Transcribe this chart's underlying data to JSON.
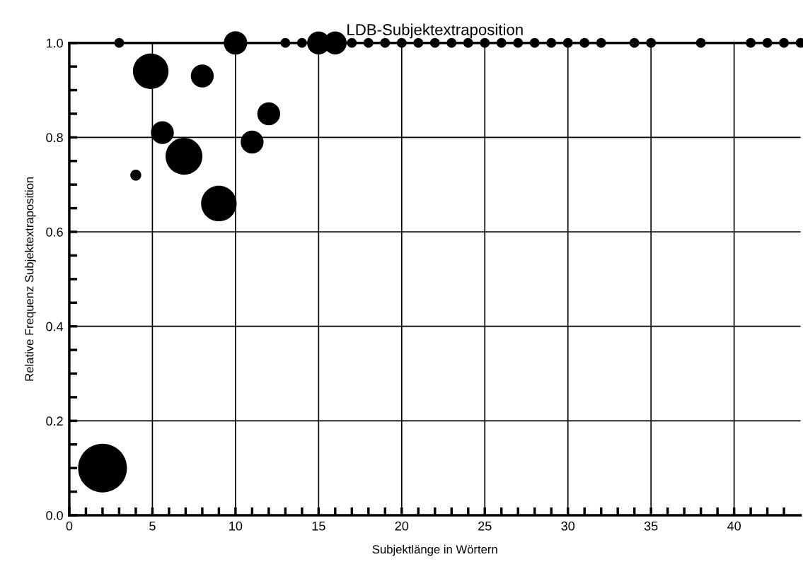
{
  "chart_data": {
    "type": "bubble",
    "title": "LDB-Subjektextraposition",
    "xlabel": "Subjektlänge in Wörtern",
    "ylabel": "Relative Frequenz Subjektextraposition",
    "x": [
      2,
      3,
      4,
      4.9,
      5.6,
      6.9,
      8,
      9,
      10,
      11,
      12,
      13,
      14,
      15,
      16,
      17,
      18,
      19,
      20,
      21,
      22,
      23,
      24,
      25,
      26,
      27,
      28,
      29,
      30,
      31,
      32,
      34,
      35,
      38,
      41,
      42,
      43,
      44
    ],
    "values": [
      0.1,
      1.0,
      0.72,
      0.94,
      0.81,
      0.76,
      0.93,
      0.66,
      1.0,
      0.79,
      0.85,
      1.0,
      1.0,
      1.0,
      1.0,
      1.0,
      1.0,
      1.0,
      1.0,
      1.0,
      1.0,
      1.0,
      1.0,
      1.0,
      1.0,
      1.0,
      1.0,
      1.0,
      1.0,
      1.0,
      1.0,
      1.0,
      1.0,
      1.0,
      1.0,
      1.0,
      1.0,
      1.0
    ],
    "sizes": [
      1,
      0.04,
      0.05,
      0.53,
      0.22,
      0.57,
      0.22,
      0.53,
      0.23,
      0.22,
      0.22,
      0.04,
      0.04,
      0.22,
      0.22,
      0.04,
      0.04,
      0.04,
      0.04,
      0.04,
      0.04,
      0.04,
      0.04,
      0.04,
      0.04,
      0.04,
      0.04,
      0.04,
      0.04,
      0.04,
      0.04,
      0.04,
      0.04,
      0.04,
      0.04,
      0.04,
      0.04,
      0.04
    ],
    "color": "#000000",
    "xlim": [
      0,
      44
    ],
    "xticks": [
      0,
      {
        "value": 1,
        "label": null
      },
      {
        "value": 2,
        "label": null
      },
      {
        "value": 3,
        "label": null
      },
      {
        "value": 4,
        "label": null
      },
      5,
      {
        "value": 6,
        "label": null
      },
      {
        "value": 7,
        "label": null
      },
      {
        "value": 8,
        "label": null
      },
      {
        "value": 9,
        "label": null
      },
      10,
      {
        "value": 11,
        "label": null
      },
      {
        "value": 12,
        "label": null
      },
      {
        "value": 13,
        "label": null
      },
      {
        "value": 14,
        "label": null
      },
      15,
      {
        "value": 16,
        "label": null
      },
      {
        "value": 17,
        "label": null
      },
      {
        "value": 18,
        "label": null
      },
      {
        "value": 19,
        "label": null
      },
      20,
      {
        "value": 21,
        "label": null
      },
      {
        "value": 22,
        "label": null
      },
      {
        "value": 23,
        "label": null
      },
      {
        "value": 24,
        "label": null
      },
      25,
      {
        "value": 26,
        "label": null
      },
      {
        "value": 27,
        "label": null
      },
      {
        "value": 28,
        "label": null
      },
      {
        "value": 29,
        "label": null
      },
      30,
      {
        "value": 31,
        "label": null
      },
      {
        "value": 32,
        "label": null
      },
      {
        "value": 33,
        "label": null
      },
      {
        "value": 34,
        "label": null
      },
      35,
      {
        "value": 36,
        "label": null
      },
      {
        "value": 37,
        "label": null
      },
      {
        "value": 38,
        "label": null
      },
      {
        "value": 39,
        "label": null
      },
      40,
      {
        "value": 41,
        "label": null
      },
      {
        "value": 42,
        "label": null
      },
      {
        "value": 43,
        "label": null
      }
    ],
    "ylim": [
      0,
      1
    ],
    "yticks": [
      {
        "value": 0,
        "label": "0.0"
      },
      {
        "value": 0.05,
        "label": null
      },
      {
        "value": 0.1,
        "label": null
      },
      {
        "value": 0.15,
        "label": null
      },
      0.2,
      {
        "value": 0.25,
        "label": null
      },
      {
        "value": 0.3,
        "label": null
      },
      {
        "value": 0.35,
        "label": null
      },
      0.4,
      {
        "value": 0.45,
        "label": null
      },
      {
        "value": 0.5,
        "label": null
      },
      {
        "value": 0.55,
        "label": null
      },
      0.6,
      {
        "value": 0.65,
        "label": null
      },
      {
        "value": 0.7,
        "label": null
      },
      {
        "value": 0.75,
        "label": null
      },
      0.8,
      {
        "value": 0.85,
        "label": null
      },
      {
        "value": 0.9,
        "label": null
      },
      {
        "value": 0.95,
        "label": null
      },
      {
        "value": 1,
        "label": "1.0"
      }
    ],
    "grid": true
  }
}
